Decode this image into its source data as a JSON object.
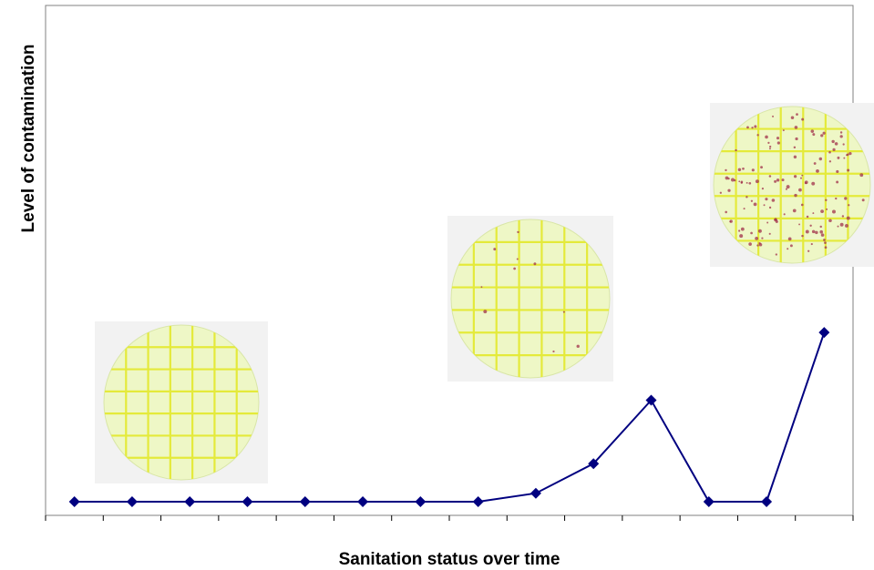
{
  "chart_data": {
    "type": "line",
    "title": "",
    "xlabel": "Sanitation status over time",
    "ylabel": "Level of contamination",
    "x": [
      1,
      2,
      3,
      4,
      5,
      6,
      7,
      8,
      9,
      10,
      11,
      12,
      13,
      14
    ],
    "series": [
      {
        "values": [
          0,
          0,
          0,
          0,
          0,
          0,
          0,
          0,
          2,
          9,
          24,
          0,
          0,
          40
        ]
      }
    ],
    "ylim": [
      0,
      110
    ],
    "x_categories_count": 14,
    "grid": false,
    "legend": "none",
    "colors": {
      "line": "#000080",
      "marker": "#000080",
      "plot_border": "#808080",
      "plate_grid": "#e4ea3a",
      "colony": "#a0304a"
    },
    "marker": "diamond",
    "annotations": [
      {
        "type": "image",
        "icon": "petri-dish-clean-icon",
        "near_point": 3,
        "colony_level": "none"
      },
      {
        "type": "image",
        "icon": "petri-dish-few-colonies-icon",
        "near_point": 9,
        "colony_level": "low"
      },
      {
        "type": "image",
        "icon": "petri-dish-many-colonies-icon",
        "near_point": 14,
        "colony_level": "high"
      }
    ]
  }
}
